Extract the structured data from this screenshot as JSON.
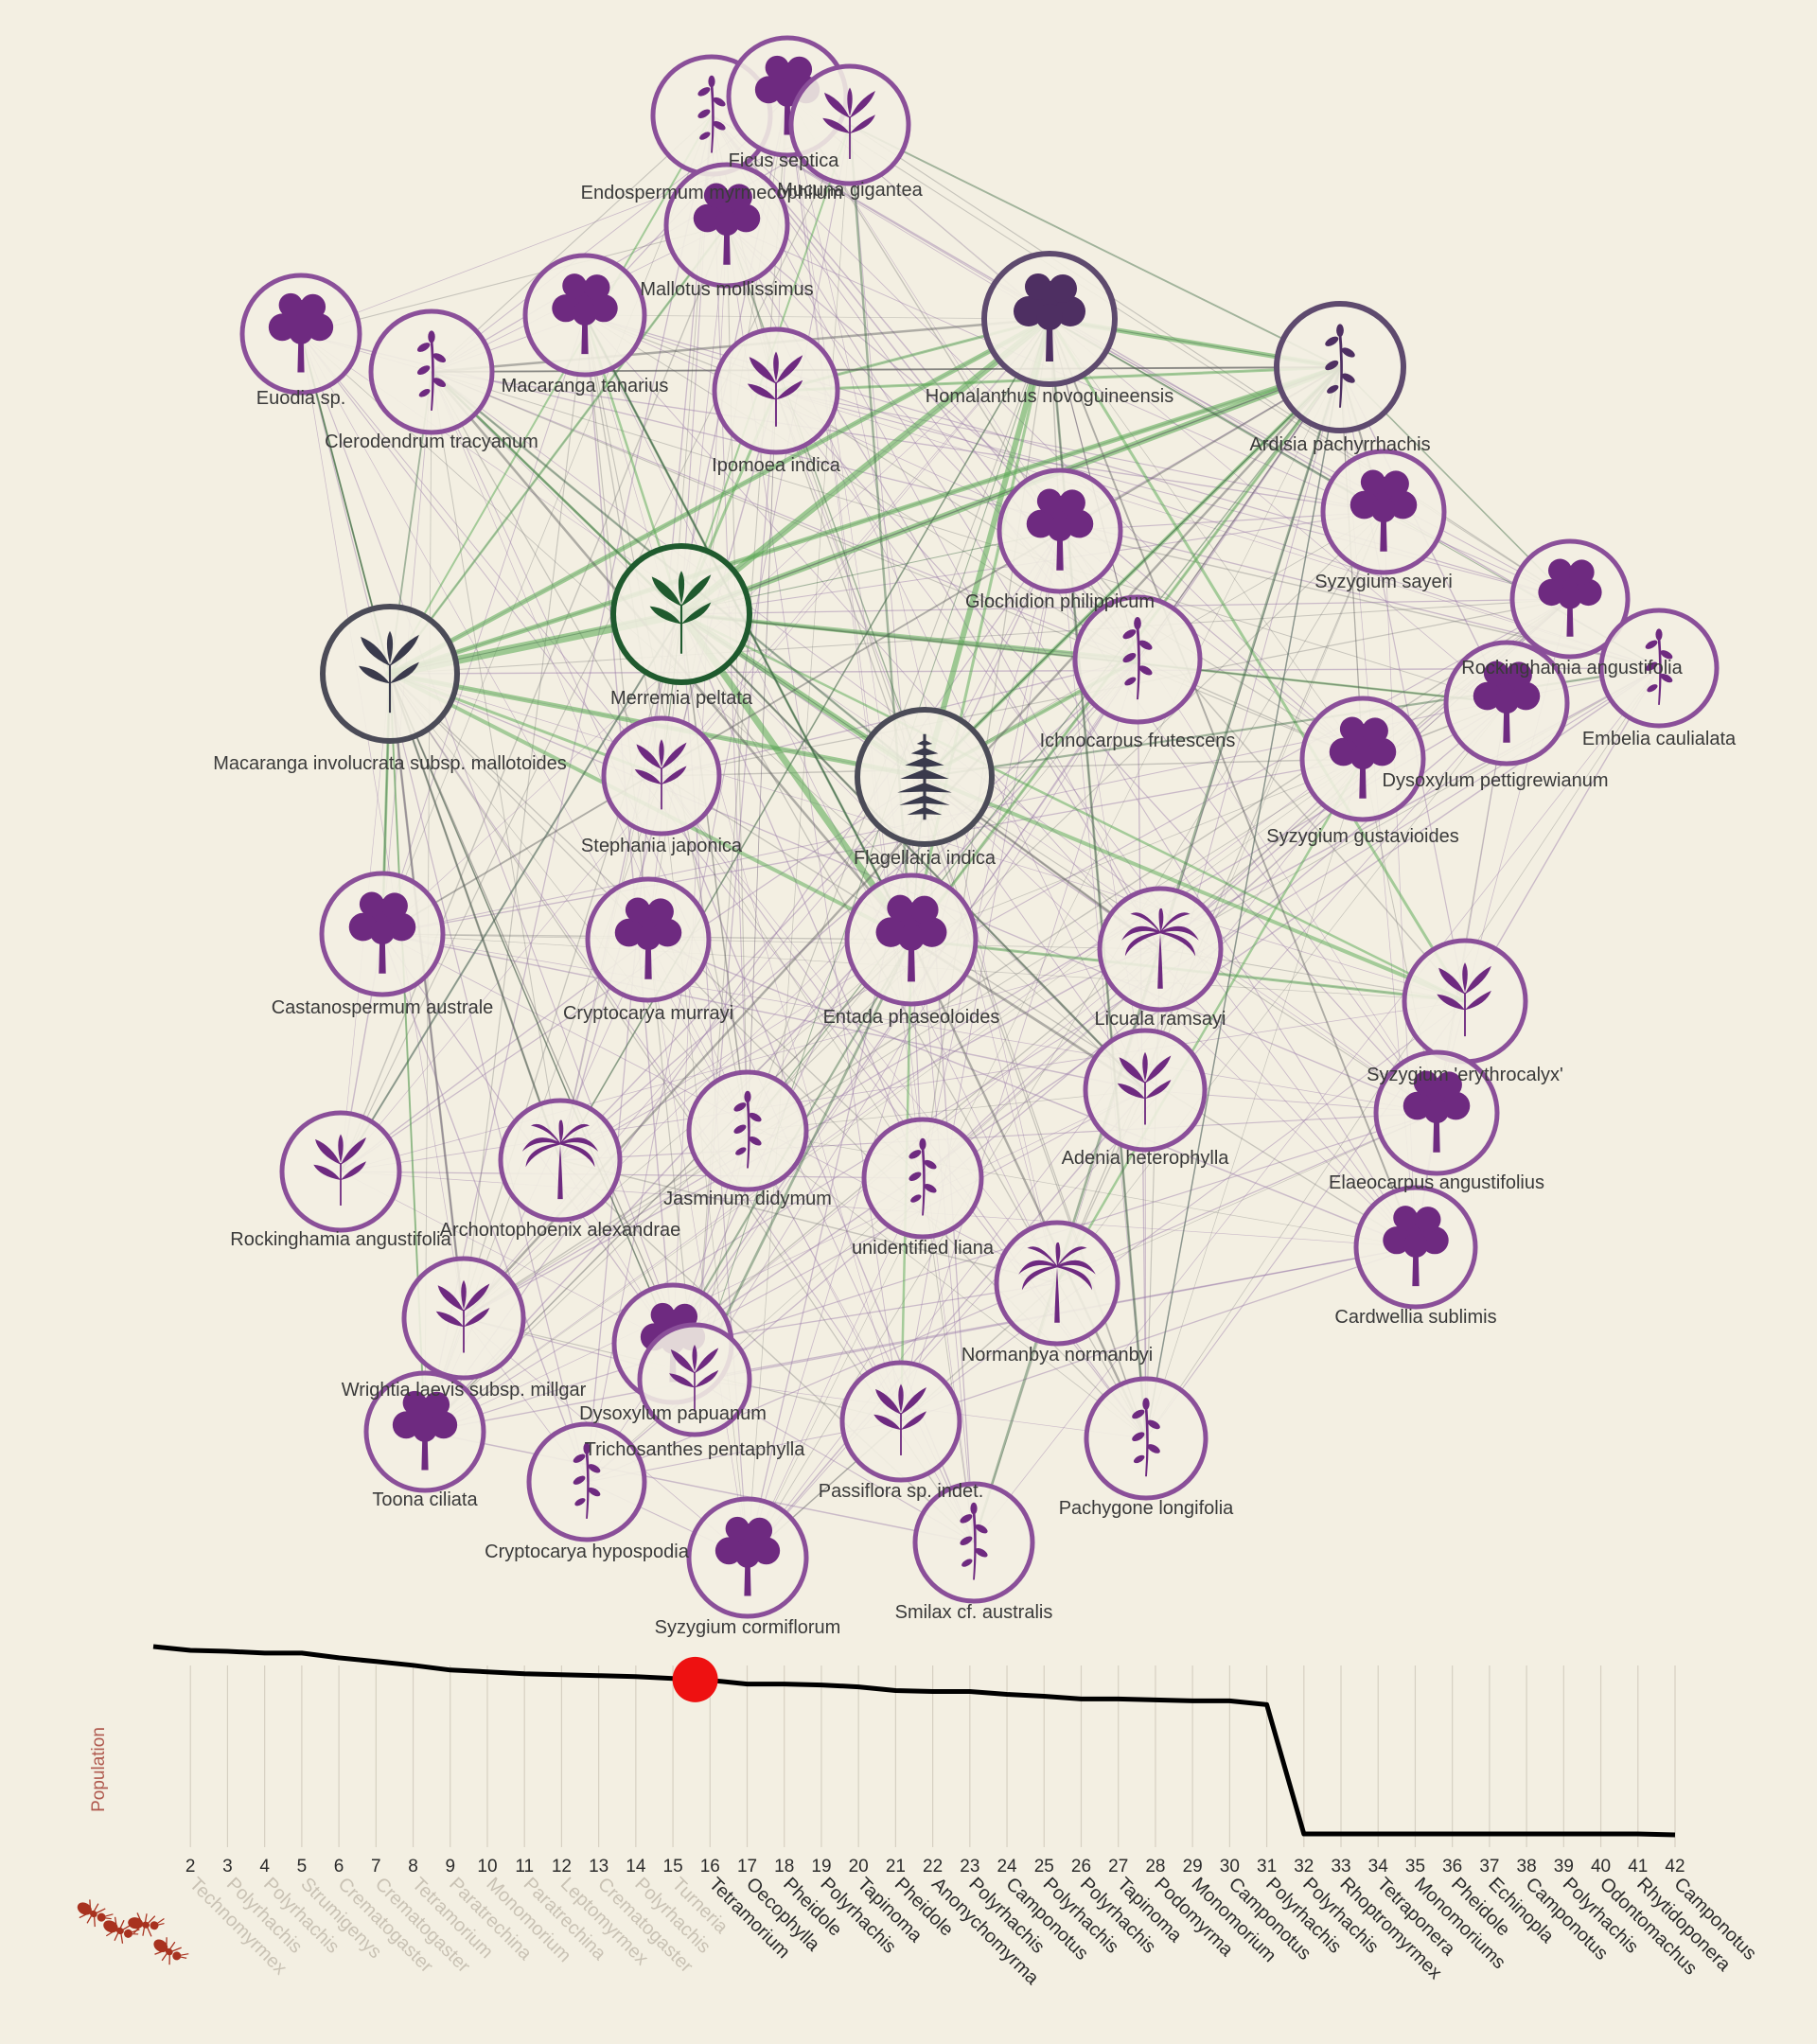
{
  "colors": {
    "background": "#f3efe2",
    "plant_purple": "#6e2a80",
    "ring_purple": "#8a4f99",
    "ring_dark": "#4b4b57",
    "ring_dark_purple": "#5e4a6e",
    "highlight_green": "#1f5a2e",
    "edge_green": "#55a850",
    "edge_purple": "#9a7aa8",
    "edge_grey": "#6b6b6b",
    "marker_red": "#ee1111",
    "ant_red": "#a8321f",
    "faded_label": "#c9c2b4"
  },
  "network": {
    "plants": [
      {
        "name": "Endospermum myrmecophilum",
        "display": "Endospermum myrmecophilum",
        "icon": "herb-icon",
        "ring": "purple"
      },
      {
        "name": "Ficus septica",
        "display": "Ficus septica",
        "icon": "tree-icon",
        "ring": "purple"
      },
      {
        "name": "Mucuna gigantea",
        "display": "Mucuna gigantea",
        "icon": "leaf-icon",
        "ring": "purple"
      },
      {
        "name": "Mallotus mollissimus",
        "display": "Mallotus mollissimus",
        "icon": "tree-icon",
        "ring": "purple"
      },
      {
        "name": "Euodia sp.",
        "display": "Euodia sp.",
        "icon": "tree-icon",
        "ring": "purple"
      },
      {
        "name": "Clerodendrum tracyanum",
        "display": "Clerodendrum tracyanum",
        "icon": "herb-icon",
        "ring": "purple"
      },
      {
        "name": "Macaranga tanarius",
        "display": "Macaranga tanarius",
        "icon": "tree-icon",
        "ring": "purple"
      },
      {
        "name": "Ipomoea indica",
        "display": "Ipomoea indica",
        "icon": "leaf-icon",
        "ring": "purple"
      },
      {
        "name": "Homalanthus novoguineensis",
        "display": "Homalanthus novoguineensis",
        "icon": "tree-icon",
        "ring": "dark-purple"
      },
      {
        "name": "Ardisia pachyrrhachis",
        "display": "Ardisia pachyrrhachis",
        "icon": "herb-icon",
        "ring": "dark-purple"
      },
      {
        "name": "Syzygium sayeri",
        "display": "Syzygium sayeri",
        "icon": "tree-icon",
        "ring": "purple"
      },
      {
        "name": "Glochidion philippicum",
        "display": "Glochidion philippicum",
        "icon": "tree-icon",
        "ring": "purple"
      },
      {
        "name": "Rockinghamia angustifolia (east)",
        "display": "Rockinghamia angustifolia",
        "icon": "tree-icon",
        "ring": "purple"
      },
      {
        "name": "Embelia caulialata",
        "display": "Embelia caulialata",
        "icon": "herb-icon",
        "ring": "purple"
      },
      {
        "name": "Merremia peltata",
        "display": "Merremia peltata",
        "icon": "leaf-icon",
        "ring": "green"
      },
      {
        "name": "Macaranga involucrata subsp. mallotoides",
        "display": "Macaranga involucrata subsp. mallotoides",
        "icon": "leaf-icon",
        "ring": "dark"
      },
      {
        "name": "Ichnocarpus frutescens",
        "display": "Ichnocarpus frutescens",
        "icon": "herb-icon",
        "ring": "purple"
      },
      {
        "name": "Dysoxylum pettigrewianum",
        "display": "Dysoxylum pettigrewianum",
        "icon": "tree-icon",
        "ring": "purple"
      },
      {
        "name": "Syzygium gustavioides",
        "display": "Syzygium gustavioides",
        "icon": "tree-icon",
        "ring": "purple"
      },
      {
        "name": "Stephania japonica",
        "display": "Stephania japonica",
        "icon": "leaf-icon",
        "ring": "purple"
      },
      {
        "name": "Flagellaria indica",
        "display": "Flagellaria indica",
        "icon": "fern-icon",
        "ring": "dark"
      },
      {
        "name": "Castanospermum australe",
        "display": "Castanospermum australe",
        "icon": "tree-icon",
        "ring": "purple"
      },
      {
        "name": "Cryptocarya murrayi",
        "display": "Cryptocarya murrayi",
        "icon": "tree-icon",
        "ring": "purple"
      },
      {
        "name": "Entada phaseoloides",
        "display": "Entada phaseoloides",
        "icon": "tree-icon",
        "ring": "purple"
      },
      {
        "name": "Licuala ramsayi",
        "display": "Licuala ramsayi",
        "icon": "palm-icon",
        "ring": "purple"
      },
      {
        "name": "Syzygium 'erythrocalyx'",
        "display": "Syzygium 'erythrocalyx'",
        "icon": "leaf-icon",
        "ring": "purple"
      },
      {
        "name": "Adenia heterophylla",
        "display": "Adenia heterophylla",
        "icon": "leaf-icon",
        "ring": "purple"
      },
      {
        "name": "Elaeocarpus angustifolius",
        "display": "Elaeocarpus angustifolius",
        "icon": "tree-icon",
        "ring": "purple"
      },
      {
        "name": "Jasminum didymum",
        "display": "Jasminum didymum",
        "icon": "herb-icon",
        "ring": "purple"
      },
      {
        "name": "Rockinghamia angustifolia (west)",
        "display": "Rockinghamia angustifolia",
        "icon": "leaf-icon",
        "ring": "purple"
      },
      {
        "name": "Archontophoenix alexandrae",
        "display": "Archontophoenix alexandrae",
        "icon": "palm-icon",
        "ring": "purple"
      },
      {
        "name": "unidentified liana",
        "display": "unidentified liana",
        "icon": "herb-icon",
        "ring": "purple"
      },
      {
        "name": "Cardwellia sublimis",
        "display": "Cardwellia sublimis",
        "icon": "tree-icon",
        "ring": "purple"
      },
      {
        "name": "Normanbya normanbyi",
        "display": "Normanbya normanbyi",
        "icon": "palm-icon",
        "ring": "purple"
      },
      {
        "name": "Wrightia laevis subsp. millgar",
        "display": "Wrightia laevis subsp. millgar",
        "icon": "leaf-icon",
        "ring": "purple"
      },
      {
        "name": "Dysoxylum papuanum",
        "display": "Dysoxylum papuanum",
        "icon": "tree-icon",
        "ring": "purple"
      },
      {
        "name": "Trichosanthes pentaphylla",
        "display": "Trichosanthes pentaphylla",
        "icon": "leaf-icon",
        "ring": "purple"
      },
      {
        "name": "Toona ciliata",
        "display": "Toona ciliata",
        "icon": "tree-icon",
        "ring": "purple"
      },
      {
        "name": "Cryptocarya hypospodia",
        "display": "Cryptocarya hypospodia",
        "icon": "herb-icon",
        "ring": "purple"
      },
      {
        "name": "Passiflora sp. indet.",
        "display": "Passiflora sp. indet.",
        "icon": "leaf-icon",
        "ring": "purple"
      },
      {
        "name": "Pachygone longifolia",
        "display": "Pachygone longifolia",
        "icon": "herb-icon",
        "ring": "purple"
      },
      {
        "name": "Syzygium cormiflorum",
        "display": "Syzygium cormiflorum",
        "icon": "tree-icon",
        "ring": "purple"
      },
      {
        "name": "Smilax cf. australis",
        "display": "Smilax cf. australis",
        "icon": "herb-icon",
        "ring": "purple"
      }
    ]
  },
  "population_chart": {
    "ylabel": "Population",
    "ticks": [
      "2",
      "3",
      "4",
      "5",
      "6",
      "7",
      "8",
      "9",
      "10",
      "11",
      "12",
      "13",
      "14",
      "15",
      "16",
      "17",
      "18",
      "19",
      "20",
      "21",
      "22",
      "23",
      "24",
      "25",
      "26",
      "27",
      "28",
      "29",
      "30",
      "31",
      "32",
      "33",
      "34",
      "35",
      "36",
      "37",
      "38",
      "39",
      "40",
      "41",
      "42"
    ],
    "population_values": [
      1.0,
      0.98,
      0.975,
      0.965,
      0.965,
      0.94,
      0.92,
      0.9,
      0.875,
      0.865,
      0.855,
      0.85,
      0.845,
      0.84,
      0.83,
      0.82,
      0.8,
      0.8,
      0.795,
      0.785,
      0.765,
      0.76,
      0.76,
      0.745,
      0.735,
      0.72,
      0.72,
      0.715,
      0.71,
      0.71,
      0.69,
      0.0,
      0.0,
      0.0,
      0.0,
      0.0,
      0.0,
      0.0,
      0.0,
      0.0,
      0.0,
      -0.005
    ],
    "current_step": 15.6,
    "genera": [
      "Technomyrmex",
      "Polyrhachis",
      "Polyrhachis",
      "Strumigenys",
      "Crematogaster",
      "Crematogaster",
      "Tetramorium",
      "Paratrechina",
      "Monomorium",
      "Paratrechina",
      "Leptomyrmex",
      "Crematogaster",
      "Polyrhachis",
      "Turneria",
      "Tetramorium",
      "Oecophylla",
      "Pheidole",
      "Polyrhachis",
      "Tapinoma",
      "Pheidole",
      "Anonychomyrma",
      "Polyrhachis",
      "Camponotus",
      "Polyrhachis",
      "Polyrhachis",
      "Tapinoma",
      "Podomyrma",
      "Monomorium",
      "Camponotus",
      "Polyrhachis",
      "Polyrhachis",
      "Rhoptromyrmex",
      "Tetraponera",
      "Monomoriums",
      "Pheidole",
      "Echinopla",
      "Camponotus",
      "Polyrhachis",
      "Odontomachus",
      "Rhytidoponera",
      "Camponotus"
    ],
    "removed_count": 14
  }
}
